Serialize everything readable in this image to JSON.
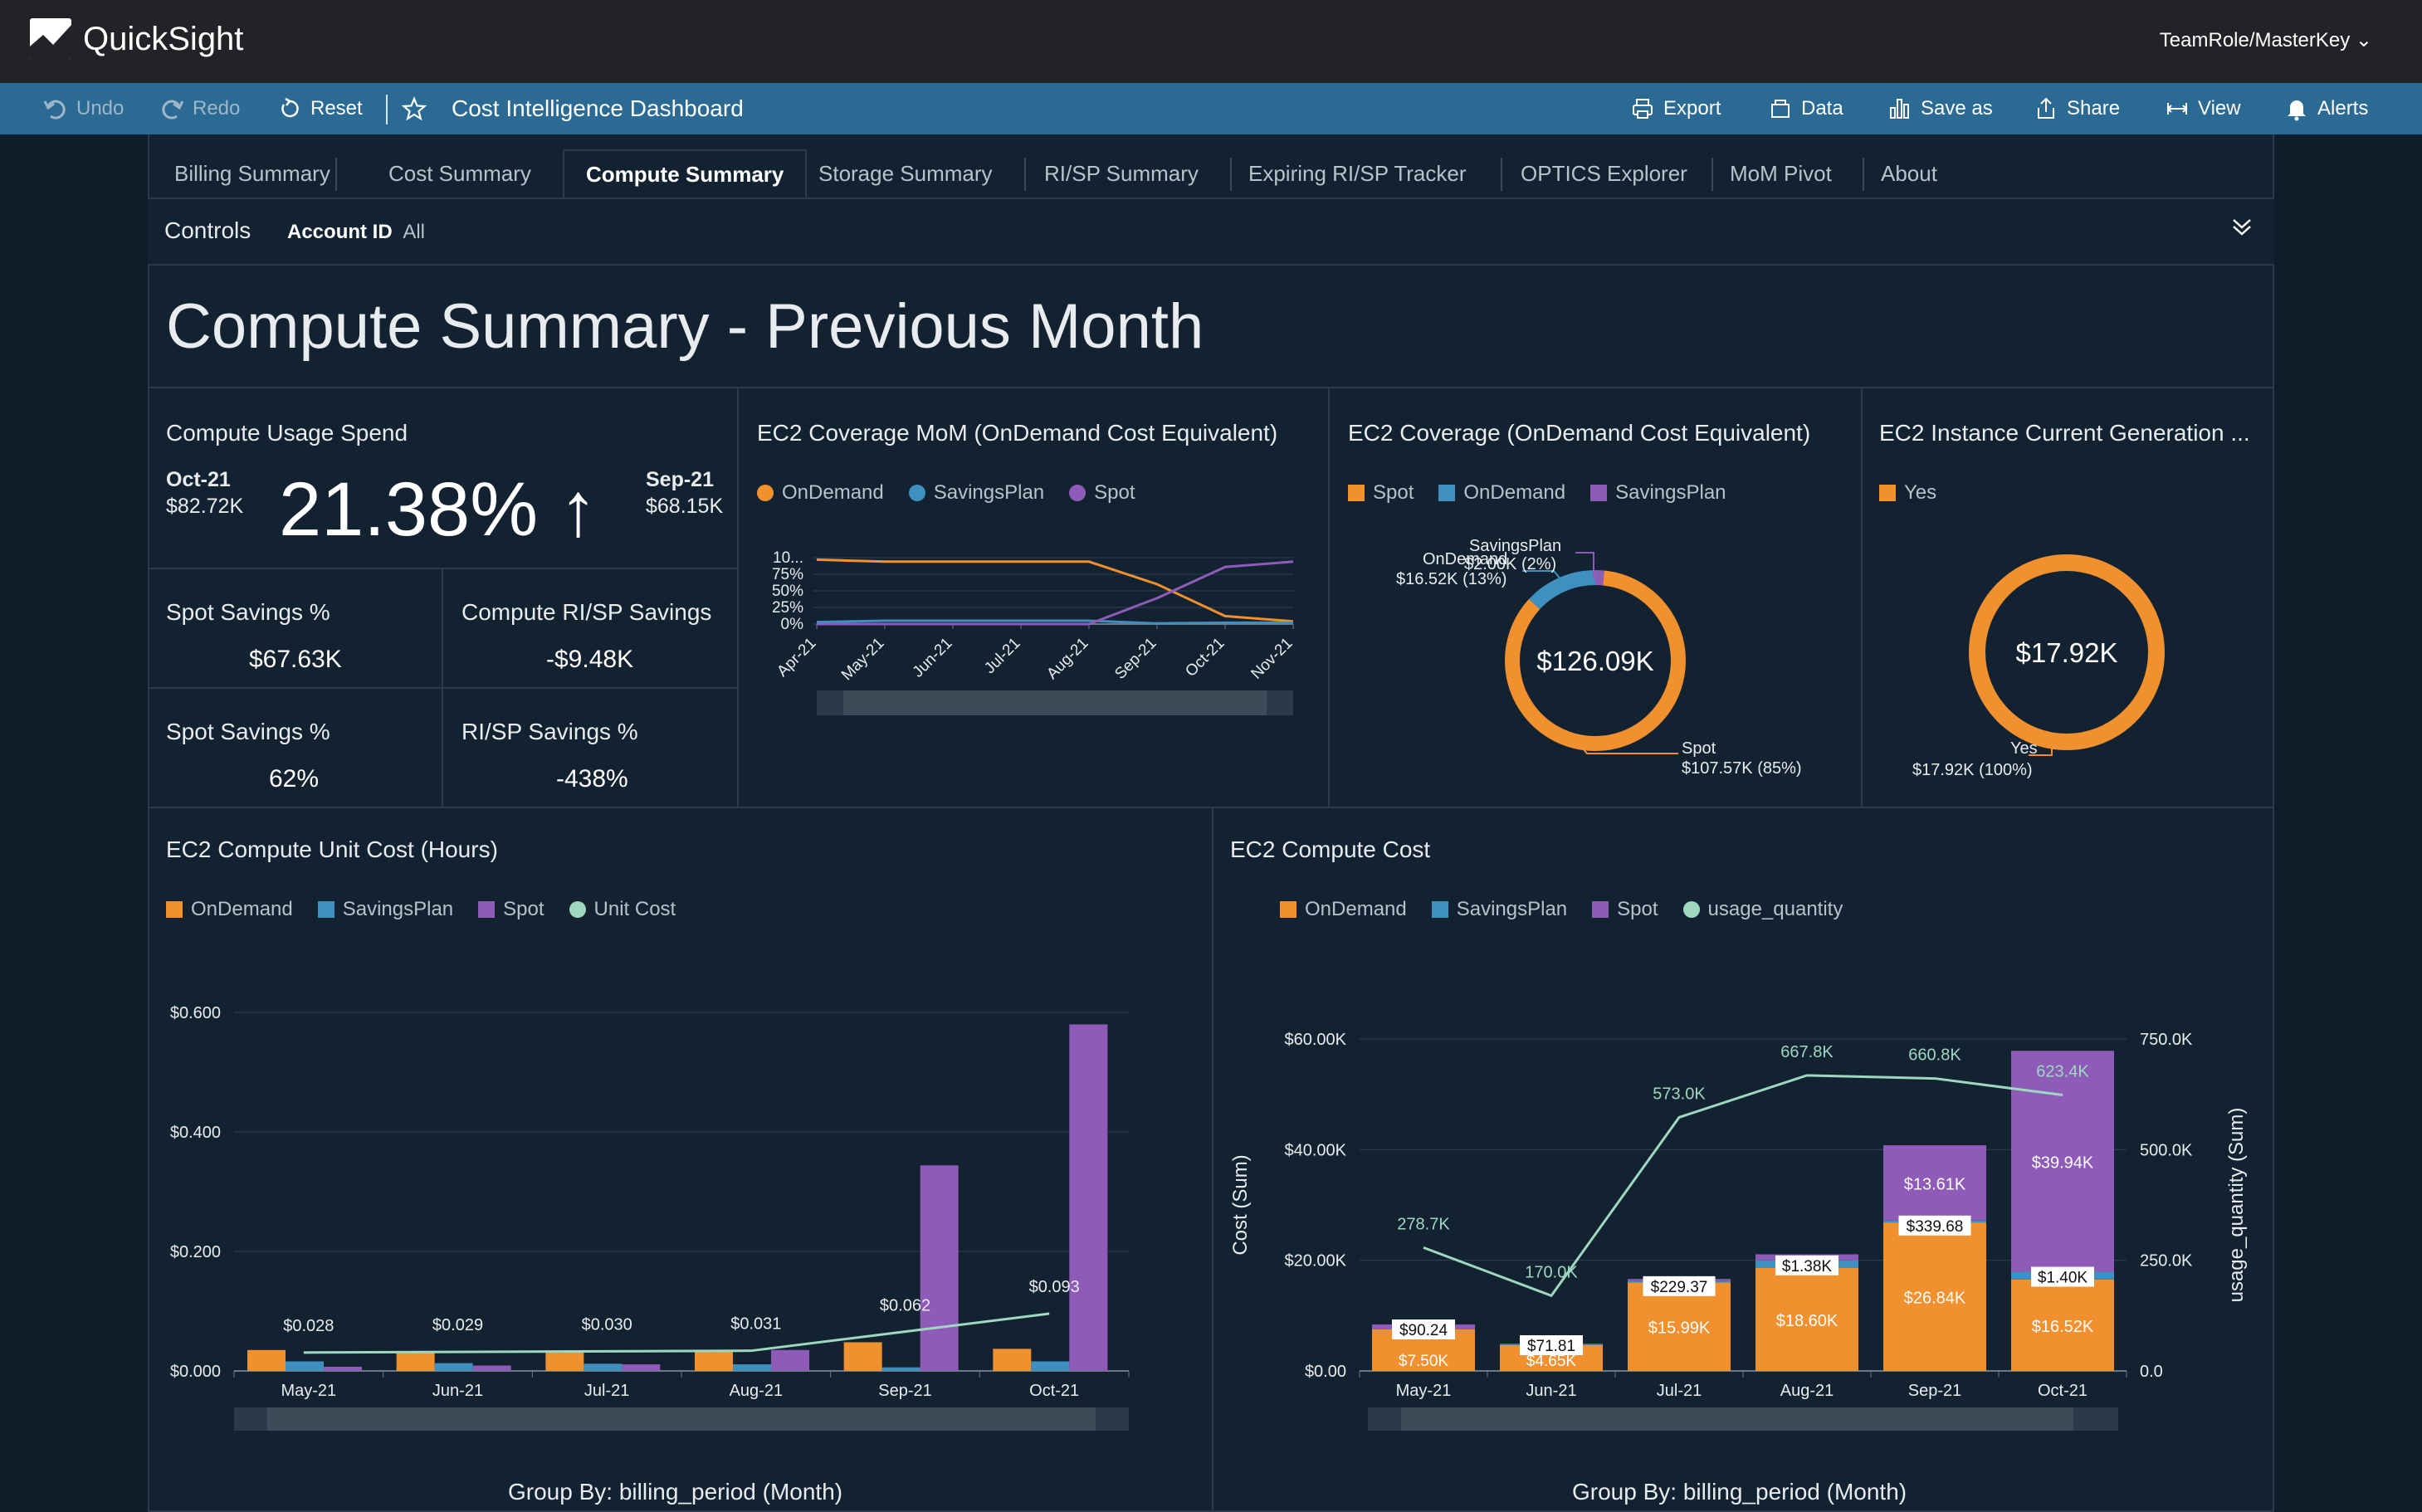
{
  "app": {
    "name": "QuickSight",
    "user": "TeamRole/MasterKey"
  },
  "toolbar": {
    "undo": "Undo",
    "redo": "Redo",
    "reset": "Reset",
    "title": "Cost Intelligence Dashboard",
    "export": "Export",
    "data": "Data",
    "save_as": "Save as",
    "share": "Share",
    "view": "View",
    "alerts": "Alerts"
  },
  "tabs": [
    "Billing Summary",
    "Cost Summary",
    "Compute Summary",
    "Storage Summary",
    "RI/SP Summary",
    "Expiring RI/SP Tracker",
    "OPTICS Explorer",
    "MoM Pivot",
    "About"
  ],
  "controls": {
    "label": "Controls",
    "filter_label": "Account ID",
    "filter_value": "All"
  },
  "page_title": "Compute Summary - Previous Month",
  "kpi": {
    "usage": {
      "title": "Compute Usage Spend",
      "left_month": "Oct-21",
      "left_value": "$82.72K",
      "pct": "21.38%",
      "arrow": "↑",
      "right_month": "Sep-21",
      "right_value": "$68.15K"
    },
    "spot_savings": {
      "title": "Spot Savings %",
      "value": "$67.63K"
    },
    "risp_savings": {
      "title": "Compute RI/SP Savings",
      "value": "-$9.48K"
    },
    "spot_pct": {
      "title": "Spot Savings %",
      "value": "62%"
    },
    "risp_pct": {
      "title": "RI/SP Savings %",
      "value": "-438%"
    }
  },
  "colors": {
    "ondemand": "#f0902f",
    "savingsplan": "#3f8fbf",
    "spot": "#8e5bb8",
    "unitcost": "#7fd1b0"
  },
  "chart_data": [
    {
      "type": "line",
      "title": "EC2 Coverage MoM (OnDemand Cost Equivalent)",
      "categories": [
        "Apr-21",
        "May-21",
        "Jun-21",
        "Jul-21",
        "Aug-21",
        "Sep-21",
        "Oct-21",
        "Nov-21"
      ],
      "y_ticks": [
        "0%",
        "25%",
        "50%",
        "75%",
        "10..."
      ],
      "ylim": [
        0,
        100
      ],
      "series": [
        {
          "name": "OnDemand",
          "values": [
            97,
            94,
            94,
            94,
            94,
            60,
            12,
            4
          ]
        },
        {
          "name": "SavingsPlan",
          "values": [
            3,
            5,
            5,
            5,
            5,
            1,
            2,
            2
          ]
        },
        {
          "name": "Spot",
          "values": [
            0,
            0,
            0,
            0,
            0,
            39,
            86,
            94
          ]
        }
      ]
    },
    {
      "type": "pie",
      "title": "EC2 Coverage (OnDemand Cost Equivalent)",
      "center": "$126.09K",
      "series_legend": [
        "Spot",
        "OnDemand",
        "SavingsPlan"
      ],
      "slices": [
        {
          "name": "Spot",
          "value": 107.57,
          "label": "Spot",
          "sublabel": "$107.57K (85%)"
        },
        {
          "name": "OnDemand",
          "value": 16.52,
          "label": "OnDemand",
          "sublabel": "$16.52K (13%)"
        },
        {
          "name": "SavingsPlan",
          "value": 2.0,
          "label": "SavingsPlan",
          "sublabel": "$2.00K (2%)"
        }
      ]
    },
    {
      "type": "pie",
      "title": "EC2 Instance Current Generation ...",
      "center": "$17.92K",
      "series_legend": [
        "Yes"
      ],
      "slices": [
        {
          "name": "Yes",
          "value": 17.92,
          "label": "Yes",
          "sublabel": "$17.92K (100%)"
        }
      ]
    },
    {
      "type": "bar",
      "title": "EC2 Compute Unit Cost (Hours)",
      "categories": [
        "May-21",
        "Jun-21",
        "Jul-21",
        "Aug-21",
        "Sep-21",
        "Oct-21"
      ],
      "y_ticks": [
        "$0.000",
        "$0.200",
        "$0.400",
        "$0.600"
      ],
      "ylim": [
        0,
        0.6
      ],
      "series": [
        {
          "name": "OnDemand",
          "values": [
            0.035,
            0.032,
            0.032,
            0.035,
            0.048,
            0.037
          ]
        },
        {
          "name": "SavingsPlan",
          "values": [
            0.016,
            0.013,
            0.012,
            0.011,
            0.006,
            0.016
          ]
        },
        {
          "name": "Spot",
          "values": [
            0.007,
            0.009,
            0.011,
            0.035,
            0.344,
            0.58
          ]
        },
        {
          "name": "Unit Cost",
          "values": [
            0.028,
            0.029,
            0.03,
            0.031,
            0.062,
            0.093
          ],
          "labels": [
            "$0.028",
            "$0.029",
            "$0.030",
            "$0.031",
            "$0.062",
            "$0.093"
          ]
        }
      ],
      "footer": "Group By: billing_period (Month)"
    },
    {
      "type": "bar",
      "title": "EC2 Compute Cost",
      "categories": [
        "May-21",
        "Jun-21",
        "Jul-21",
        "Aug-21",
        "Sep-21",
        "Oct-21"
      ],
      "ylabel": "Cost (Sum)",
      "y2label": "usage_quantity (Sum)",
      "y_ticks": [
        "$0.00",
        "$20.00K",
        "$40.00K",
        "$60.00K"
      ],
      "y2_ticks": [
        "0.0",
        "250.0K",
        "500.0K",
        "750.0K"
      ],
      "ylim": [
        0,
        60000
      ],
      "y2lim": [
        0,
        750000
      ],
      "series": [
        {
          "name": "OnDemand",
          "values": [
            7500,
            4650,
            15990,
            18600,
            26840,
            16520
          ],
          "labels": [
            "$7.50K",
            "$4.65K",
            "$15.99K",
            "$18.60K",
            "$26.84K",
            "$16.52K"
          ]
        },
        {
          "name": "SavingsPlan",
          "values": [
            90.24,
            71.81,
            229.37,
            1380,
            339.68,
            1400
          ],
          "labels": [
            "$90.24",
            "$71.81",
            "$229.37",
            "$1.38K",
            "$339.68",
            "$1.40K"
          ]
        },
        {
          "name": "Spot",
          "values": [
            800,
            200,
            400,
            1100,
            13610,
            39940
          ],
          "labels": [
            "",
            "",
            "",
            "",
            "$13.61K",
            "$39.94K"
          ]
        },
        {
          "name": "usage_quantity",
          "values": [
            278700,
            170000,
            573000,
            667800,
            660800,
            623400
          ],
          "labels": [
            "278.7K",
            "170.0K",
            "573.0K",
            "667.8K",
            "660.8K",
            "623.4K"
          ]
        }
      ],
      "footer": "Group By: billing_period (Month)"
    }
  ]
}
